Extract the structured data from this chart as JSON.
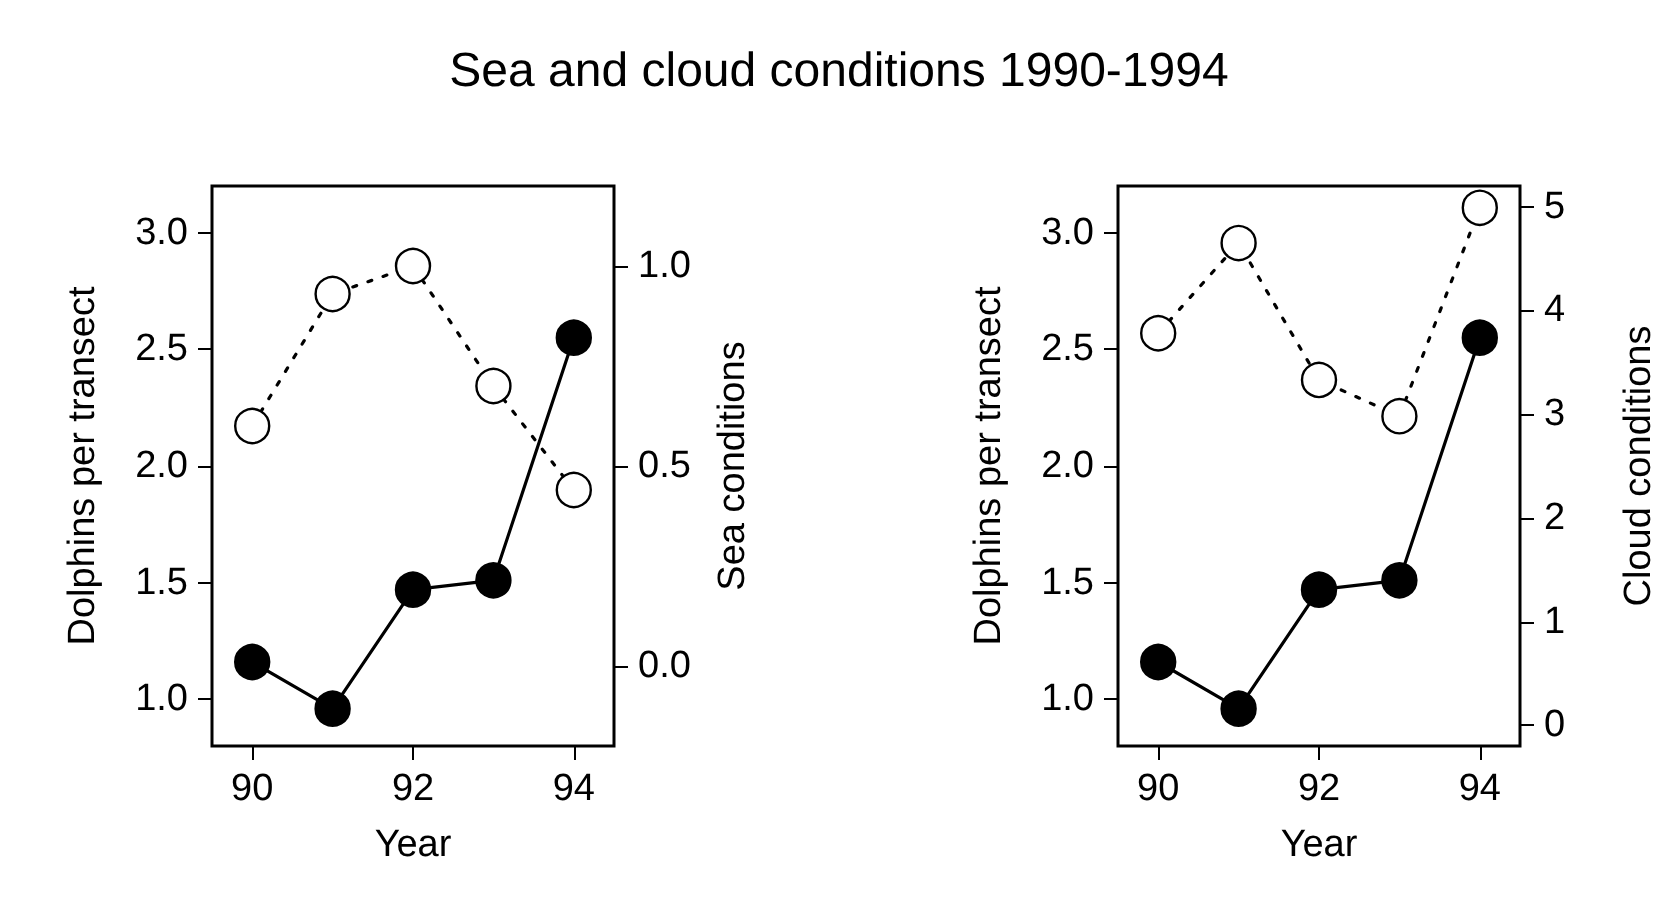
{
  "chart_data": [
    {
      "type": "line",
      "title": "Sea and cloud conditions 1990-1994",
      "xlabel": "Year",
      "ylabel": "Dolphins per transect",
      "y2label": "Sea conditions",
      "x": [
        90,
        91,
        92,
        93,
        94
      ],
      "xlim": [
        89.5,
        94.5
      ],
      "xticks": [
        90,
        92,
        94
      ],
      "ylim": [
        0.8,
        3.2
      ],
      "yticks": [
        {
          "value": 1,
          "label": "1.0"
        },
        {
          "value": 1.5,
          "label": "1.5"
        },
        {
          "value": 2,
          "label": "2.0"
        },
        {
          "value": 2.5,
          "label": "2.5"
        },
        {
          "value": 3,
          "label": "3.0"
        }
      ],
      "y2lim": [
        -0.2,
        1.2
      ],
      "y2ticks": [
        {
          "value": 0,
          "label": "0.0"
        },
        {
          "value": 0.5,
          "label": "0.5"
        },
        {
          "value": 1,
          "label": "1.0"
        }
      ],
      "grid": false,
      "marker": "circle",
      "series": [
        {
          "color": "#000000",
          "line_style": "solid",
          "values": [
            1.16,
            0.96,
            1.47,
            1.51,
            2.55
          ]
        },
        {
          "color": "#000000",
          "line_style": "dotted",
          "axis": "y2",
          "values": [
            0.6,
            0.93,
            1.0,
            0.7,
            0.44
          ]
        }
      ]
    },
    {
      "type": "line",
      "xlabel": "Year",
      "ylabel": "Dolphins per transect",
      "y2label": "Cloud conditions",
      "x": [
        90,
        91,
        92,
        93,
        94
      ],
      "xlim": [
        89.5,
        94.5
      ],
      "xticks": [
        90,
        92,
        94
      ],
      "ylim": [
        0.8,
        3.2
      ],
      "yticks": [
        {
          "value": 1,
          "label": "1.0"
        },
        {
          "value": 1.5,
          "label": "1.5"
        },
        {
          "value": 2,
          "label": "2.0"
        },
        {
          "value": 2.5,
          "label": "2.5"
        },
        {
          "value": 3,
          "label": "3.0"
        }
      ],
      "y2lim": [
        -0.2,
        5.2
      ],
      "y2ticks": [
        0,
        1,
        2,
        3,
        4,
        5
      ],
      "grid": false,
      "marker": "circle",
      "series": [
        {
          "color": "#000000",
          "line_style": "solid",
          "values": [
            1.16,
            0.96,
            1.47,
            1.51,
            2.55
          ]
        },
        {
          "color": "#000000",
          "line_style": "dotted",
          "axis": "y2",
          "values": [
            3.78,
            4.65,
            3.33,
            2.98,
            4.99
          ]
        }
      ]
    }
  ]
}
